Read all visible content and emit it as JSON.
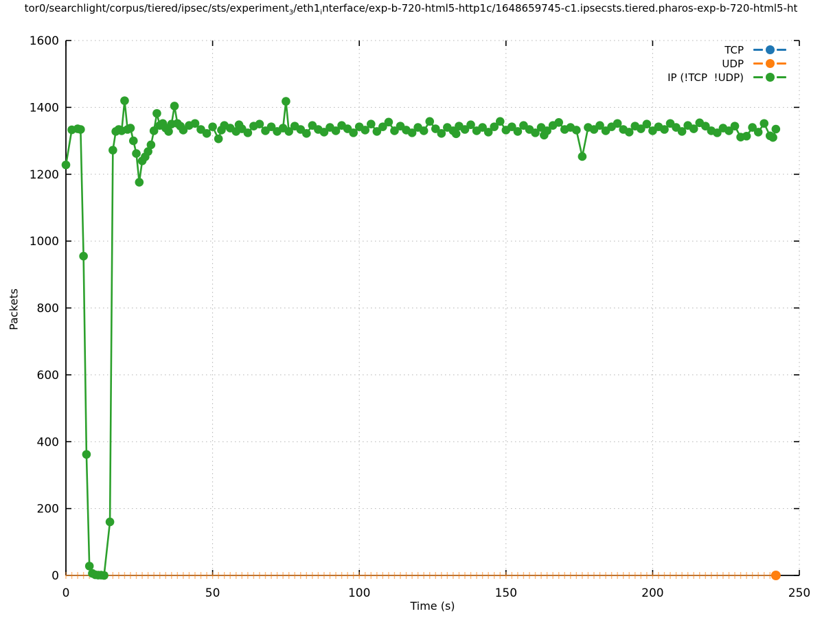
{
  "title": {
    "prefix": "tor0/searchlight/corpus/tiered/ipsec/sts/experiment",
    "subscript_1": "3",
    "mid": "/eth1",
    "subscript_2": "i",
    "suffix": "nterface/exp-b-720-html5-http1c/1648659745-c1.ipsecsts.tiered.pharos-exp-b-720-html5-ht"
  },
  "legend": {
    "items": [
      {
        "label": "TCP",
        "color": "#1f77b4"
      },
      {
        "label": "UDP",
        "color": "#ff7f0e"
      },
      {
        "label": "IP (!TCP  !UDP)",
        "color": "#2ca02c"
      }
    ]
  },
  "axes": {
    "xlabel": "Time (s)",
    "ylabel": "Packets"
  },
  "chart_data": {
    "type": "line",
    "title": "tor0/searchlight/corpus/tiered/ipsec/sts/experiment_3/eth1_interface/exp-b-720-html5-http1c/1648659745-c1.ipsecsts.tiered.pharos-exp-b-720-html5-ht",
    "xlabel": "Time (s)",
    "ylabel": "Packets",
    "xlim": [
      0,
      250
    ],
    "ylim": [
      0,
      1600
    ],
    "xticks": [
      0,
      50,
      100,
      150,
      200,
      250
    ],
    "yticks": [
      0,
      200,
      400,
      600,
      800,
      1000,
      1200,
      1400,
      1600
    ],
    "grid": true,
    "legend_position": "top-right-inside",
    "series": [
      {
        "name": "TCP",
        "color": "#1f77b4",
        "style": "line-with-dot-markers",
        "note": "constant zero, hidden beneath UDP trace",
        "points": [
          [
            0,
            0
          ],
          [
            242,
            0
          ]
        ]
      },
      {
        "name": "UDP",
        "color": "#ff7f0e",
        "style": "line-with-tick-markers",
        "t_min": 0,
        "t_max": 240,
        "marker_step": 2,
        "y": 0,
        "end_point": [
          242,
          0
        ]
      },
      {
        "name": "IP (!TCP  !UDP)",
        "color": "#2ca02c",
        "style": "line-with-dot-markers",
        "points": [
          [
            0,
            1228
          ],
          [
            2,
            1333
          ],
          [
            4,
            1336
          ],
          [
            5,
            1334
          ],
          [
            6,
            955
          ],
          [
            7,
            362
          ],
          [
            8,
            28
          ],
          [
            9,
            6
          ],
          [
            10,
            2
          ],
          [
            11,
            1
          ],
          [
            12,
            1
          ],
          [
            13,
            0
          ],
          [
            15,
            160
          ],
          [
            16,
            1272
          ],
          [
            17,
            1328
          ],
          [
            18,
            1334
          ],
          [
            19,
            1330
          ],
          [
            20,
            1420
          ],
          [
            21,
            1334
          ],
          [
            22,
            1338
          ],
          [
            23,
            1300
          ],
          [
            24,
            1262
          ],
          [
            25,
            1176
          ],
          [
            26,
            1240
          ],
          [
            27,
            1252
          ],
          [
            28,
            1268
          ],
          [
            29,
            1288
          ],
          [
            30,
            1330
          ],
          [
            31,
            1382
          ],
          [
            32,
            1346
          ],
          [
            33,
            1352
          ],
          [
            34,
            1338
          ],
          [
            35,
            1328
          ],
          [
            36,
            1350
          ],
          [
            37,
            1404
          ],
          [
            38,
            1352
          ],
          [
            39,
            1344
          ],
          [
            40,
            1332
          ],
          [
            42,
            1346
          ],
          [
            44,
            1352
          ],
          [
            46,
            1334
          ],
          [
            48,
            1322
          ],
          [
            50,
            1342
          ],
          [
            52,
            1306
          ],
          [
            53,
            1332
          ],
          [
            54,
            1346
          ],
          [
            56,
            1338
          ],
          [
            58,
            1328
          ],
          [
            59,
            1348
          ],
          [
            60,
            1336
          ],
          [
            62,
            1324
          ],
          [
            64,
            1344
          ],
          [
            66,
            1350
          ],
          [
            68,
            1330
          ],
          [
            70,
            1342
          ],
          [
            72,
            1328
          ],
          [
            74,
            1338
          ],
          [
            75,
            1418
          ],
          [
            76,
            1328
          ],
          [
            78,
            1344
          ],
          [
            80,
            1334
          ],
          [
            82,
            1322
          ],
          [
            84,
            1346
          ],
          [
            86,
            1334
          ],
          [
            88,
            1326
          ],
          [
            90,
            1340
          ],
          [
            92,
            1330
          ],
          [
            94,
            1346
          ],
          [
            96,
            1336
          ],
          [
            98,
            1324
          ],
          [
            100,
            1342
          ],
          [
            102,
            1332
          ],
          [
            104,
            1350
          ],
          [
            106,
            1328
          ],
          [
            108,
            1342
          ],
          [
            110,
            1356
          ],
          [
            112,
            1330
          ],
          [
            114,
            1344
          ],
          [
            116,
            1332
          ],
          [
            118,
            1324
          ],
          [
            120,
            1340
          ],
          [
            122,
            1330
          ],
          [
            124,
            1358
          ],
          [
            126,
            1336
          ],
          [
            128,
            1322
          ],
          [
            130,
            1340
          ],
          [
            132,
            1330
          ],
          [
            133,
            1321
          ],
          [
            134,
            1344
          ],
          [
            136,
            1334
          ],
          [
            138,
            1348
          ],
          [
            140,
            1330
          ],
          [
            142,
            1340
          ],
          [
            144,
            1326
          ],
          [
            146,
            1342
          ],
          [
            148,
            1358
          ],
          [
            150,
            1332
          ],
          [
            152,
            1342
          ],
          [
            154,
            1328
          ],
          [
            156,
            1346
          ],
          [
            158,
            1334
          ],
          [
            160,
            1324
          ],
          [
            162,
            1340
          ],
          [
            163,
            1317
          ],
          [
            164,
            1330
          ],
          [
            166,
            1346
          ],
          [
            168,
            1355
          ],
          [
            170,
            1334
          ],
          [
            172,
            1340
          ],
          [
            174,
            1332
          ],
          [
            176,
            1253
          ],
          [
            178,
            1340
          ],
          [
            180,
            1334
          ],
          [
            182,
            1346
          ],
          [
            184,
            1330
          ],
          [
            186,
            1342
          ],
          [
            188,
            1352
          ],
          [
            190,
            1334
          ],
          [
            192,
            1326
          ],
          [
            194,
            1344
          ],
          [
            196,
            1336
          ],
          [
            198,
            1350
          ],
          [
            200,
            1330
          ],
          [
            202,
            1342
          ],
          [
            204,
            1334
          ],
          [
            206,
            1352
          ],
          [
            208,
            1340
          ],
          [
            210,
            1328
          ],
          [
            212,
            1346
          ],
          [
            214,
            1336
          ],
          [
            216,
            1354
          ],
          [
            218,
            1344
          ],
          [
            220,
            1330
          ],
          [
            222,
            1324
          ],
          [
            224,
            1338
          ],
          [
            226,
            1330
          ],
          [
            228,
            1344
          ],
          [
            230,
            1311
          ],
          [
            232,
            1314
          ],
          [
            234,
            1340
          ],
          [
            236,
            1326
          ],
          [
            238,
            1352
          ],
          [
            240,
            1315
          ],
          [
            241,
            1310
          ],
          [
            242,
            1335
          ]
        ]
      }
    ]
  }
}
